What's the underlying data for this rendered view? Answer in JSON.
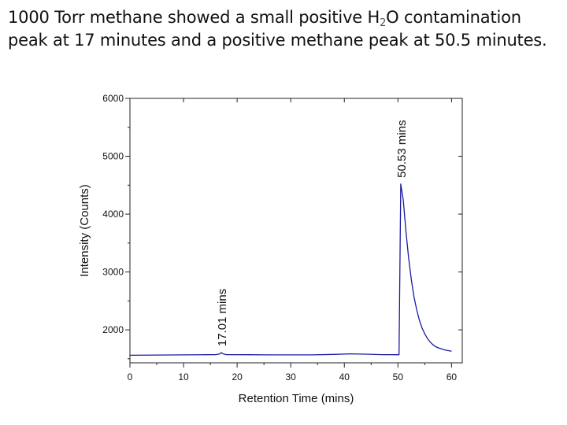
{
  "caption": {
    "line1_before": "1000 Torr methane showed a small positive H",
    "line1_sub": "2",
    "line1_after": "O contamination",
    "line2": "peak at 17 minutes and a positive methane peak at 50.5 minutes."
  },
  "chart_data": {
    "type": "line",
    "title": "",
    "xlabel": "Retention Time (mins)",
    "ylabel": "Intensity (Counts)",
    "xlim": [
      0,
      62
    ],
    "ylim": [
      1430,
      6000
    ],
    "x_ticks": [
      0,
      10,
      20,
      30,
      40,
      50,
      60
    ],
    "y_ticks": [
      2000,
      3000,
      4000,
      5000,
      6000
    ],
    "grid": false,
    "line_color": "#1a1aa0",
    "series": [
      {
        "name": "Intensity",
        "x": [
          0,
          5,
          10,
          14,
          16,
          16.8,
          17.01,
          17.4,
          18,
          22,
          26,
          30,
          34,
          38,
          41,
          44,
          47,
          50.2,
          50.53,
          51,
          51.5,
          52,
          52.5,
          53,
          53.5,
          54,
          54.5,
          55,
          55.5,
          56,
          56.5,
          57,
          57.5,
          58,
          58.5,
          59,
          59.5,
          60
        ],
        "y": [
          1560,
          1565,
          1568,
          1570,
          1572,
          1585,
          1605,
          1585,
          1572,
          1570,
          1568,
          1567,
          1568,
          1575,
          1585,
          1580,
          1572,
          1570,
          4520,
          4240,
          3700,
          3240,
          2870,
          2570,
          2350,
          2170,
          2030,
          1930,
          1850,
          1790,
          1745,
          1710,
          1690,
          1675,
          1660,
          1648,
          1640,
          1630
        ]
      }
    ],
    "annotations": [
      {
        "text": "17.01 mins",
        "x": 17.01,
        "y": 1605
      },
      {
        "text": "50.53 mins",
        "x": 50.53,
        "y": 4520
      }
    ]
  }
}
